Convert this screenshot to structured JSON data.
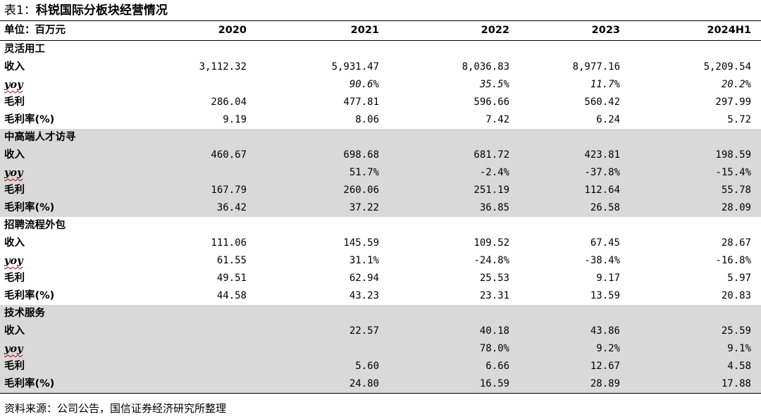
{
  "title": {
    "prefix": "表1：",
    "text": "科锐国际分板块经营情况"
  },
  "header": {
    "unit": "单位：百万元",
    "years": [
      "2020",
      "2021",
      "2022",
      "2023",
      "2024H1"
    ]
  },
  "sections": [
    {
      "name": "灵活用工",
      "shaded": false,
      "rows": [
        {
          "label": "收入",
          "type": "normal",
          "values": [
            "3,112.32",
            "5,931.47",
            "8,036.83",
            "8,977.16",
            "5,209.54"
          ]
        },
        {
          "label": "yoy",
          "type": "yoy",
          "italic_values": true,
          "values": [
            "",
            "90.6%",
            "35.5%",
            "11.7%",
            "20.2%"
          ]
        },
        {
          "label": "毛利",
          "type": "normal",
          "values": [
            "286.04",
            "477.81",
            "596.66",
            "560.42",
            "297.99"
          ]
        },
        {
          "label": "毛利率(%)",
          "type": "normal",
          "values": [
            "9.19",
            "8.06",
            "7.42",
            "6.24",
            "5.72"
          ]
        }
      ]
    },
    {
      "name": "中高端人才访寻",
      "shaded": true,
      "rows": [
        {
          "label": "收入",
          "type": "normal",
          "values": [
            "460.67",
            "698.68",
            "681.72",
            "423.81",
            "198.59"
          ]
        },
        {
          "label": "yoy",
          "type": "yoy",
          "italic_values": false,
          "values": [
            "",
            "51.7%",
            "-2.4%",
            "-37.8%",
            "-15.4%"
          ]
        },
        {
          "label": "毛利",
          "type": "normal",
          "values": [
            "167.79",
            "260.06",
            "251.19",
            "112.64",
            "55.78"
          ]
        },
        {
          "label": "毛利率(%)",
          "type": "normal",
          "values": [
            "36.42",
            "37.22",
            "36.85",
            "26.58",
            "28.09"
          ]
        }
      ]
    },
    {
      "name": "招聘流程外包",
      "shaded": false,
      "rows": [
        {
          "label": "收入",
          "type": "normal",
          "values": [
            "111.06",
            "145.59",
            "109.52",
            "67.45",
            "28.67"
          ]
        },
        {
          "label": "yoy",
          "type": "yoy",
          "italic_values": false,
          "values": [
            "61.55",
            "31.1%",
            "-24.8%",
            "-38.4%",
            "-16.8%"
          ]
        },
        {
          "label": "毛利",
          "type": "normal",
          "values": [
            "49.51",
            "62.94",
            "25.53",
            "9.17",
            "5.97"
          ]
        },
        {
          "label": "毛利率(%)",
          "type": "normal",
          "values": [
            "44.58",
            "43.23",
            "23.31",
            "13.59",
            "20.83"
          ]
        }
      ]
    },
    {
      "name": "技术服务",
      "shaded": true,
      "rows": [
        {
          "label": "收入",
          "type": "normal",
          "values": [
            "",
            "22.57",
            "40.18",
            "43.86",
            "25.59"
          ]
        },
        {
          "label": "yoy",
          "type": "yoy",
          "italic_values": false,
          "values": [
            "",
            "",
            "78.0%",
            "9.2%",
            "9.1%"
          ]
        },
        {
          "label": "毛利",
          "type": "normal",
          "values": [
            "",
            "5.60",
            "6.66",
            "12.67",
            "4.58"
          ]
        },
        {
          "label": "毛利率(%)",
          "type": "normal",
          "values": [
            "",
            "24.80",
            "16.59",
            "28.89",
            "17.88"
          ]
        }
      ]
    }
  ],
  "source": "资料来源：公司公告，国信证券经济研究所整理",
  "colors": {
    "shade": "#d9d9d9",
    "text": "#000000",
    "yoy_underline": "#c00000"
  }
}
